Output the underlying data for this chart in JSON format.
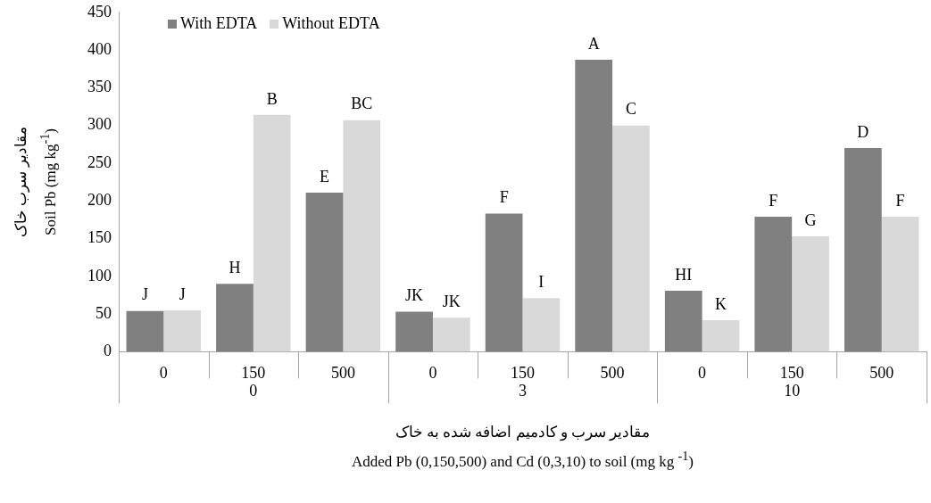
{
  "chart_data": {
    "type": "bar",
    "xlabel": "مقادیر سرب و کادمیم اضافه شده به خاک\nAdded Pb (0,150,500) and Cd (0,3,10) to soil (mg kg $^{-1}$)",
    "ylabel": "مقادیر سرب خاک\nSoil Pb (mg kg$^{-1}$)",
    "categories": [
      "0",
      "150",
      "500",
      "0",
      "150",
      "500",
      "0",
      "150",
      "500"
    ],
    "series": [
      {
        "name": "With EDTA",
        "color": "#808080",
        "values": [
          54,
          90,
          211,
          53,
          183,
          387,
          81,
          179,
          270
        ],
        "value_labels": [
          "J",
          "H",
          "E",
          "JK",
          "F",
          "A",
          "HI",
          "F",
          "D"
        ]
      },
      {
        "name": "Without EDTA",
        "color": "#d9d9d9",
        "values": [
          55,
          314,
          307,
          45,
          71,
          300,
          42,
          153,
          179
        ],
        "value_labels": [
          "J",
          "B",
          "BC",
          "JK",
          "I",
          "C",
          "K",
          "G",
          "F"
        ]
      }
    ],
    "annotations": [
      "0",
      "3",
      "10"
    ],
    "ylim": [
      0,
      450
    ],
    "yticks": [
      0,
      50,
      100,
      150,
      200,
      250,
      300,
      350,
      400,
      450
    ],
    "grid": false,
    "legend": "top left"
  }
}
